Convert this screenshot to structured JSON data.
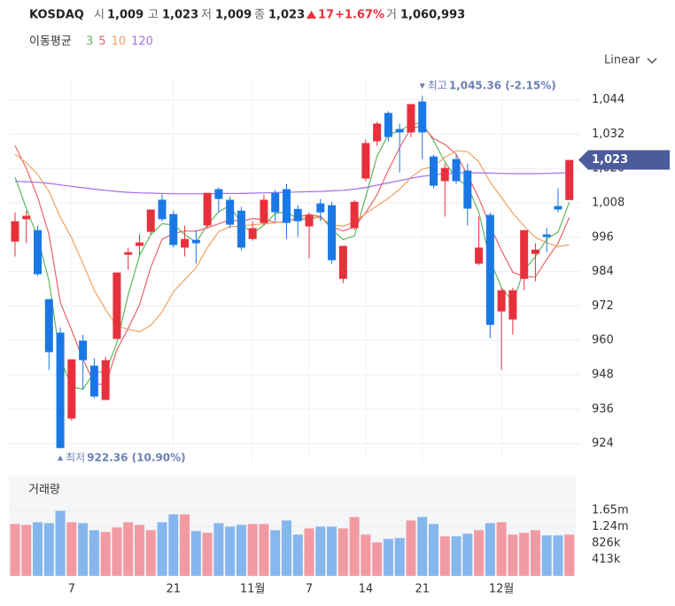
{
  "header": {
    "symbol": "KOSDAQ",
    "fields": [
      {
        "label": "시",
        "value": "1,009"
      },
      {
        "label": "고",
        "value": "1,023"
      },
      {
        "label": "저",
        "value": "1,009"
      },
      {
        "label": "종",
        "value": "1,023"
      }
    ],
    "change": "17",
    "change_pct": "+1.67%",
    "volume_label": "거",
    "volume": "1,060,993",
    "scale_mode": "Linear"
  },
  "chart_data": [
    {
      "type": "candlestick",
      "legend_title": "이동평균",
      "categories": [
        null,
        null,
        null,
        null,
        null,
        "7",
        null,
        null,
        null,
        null,
        null,
        null,
        null,
        null,
        "21",
        null,
        null,
        null,
        null,
        null,
        null,
        "11월",
        null,
        null,
        null,
        null,
        "7",
        null,
        null,
        null,
        null,
        "14",
        null,
        null,
        null,
        null,
        "21",
        null,
        null,
        null,
        null,
        null,
        null,
        "12월",
        null,
        null,
        null,
        null,
        null,
        null
      ],
      "open": [
        994.5,
        1002.3,
        998.5,
        974.4,
        962.7,
        932.7,
        959.9,
        951.2,
        939.2,
        960.5,
        989.9,
        993.0,
        997.9,
        1009.1,
        1004.1,
        992.4,
        995.1,
        1000.1,
        1012.8,
        1009.1,
        1005.3,
        995.4,
        1001.0,
        1011.5,
        1012.8,
        1005.9,
        999.8,
        1007.8,
        1007.2,
        981.5,
        999.2,
        1016.5,
        1029.5,
        1039.4,
        1033.8,
        1032.6,
        1043.4,
        1024.2,
        1015.6,
        1023.3,
        1019.3,
        986.8,
        1003.8,
        970.1,
        967.3,
        981.5,
        990.2,
        997.0,
        1006.9,
        1009
      ],
      "high": [
        1004.7,
        1005.3,
        1000.1,
        974.4,
        964.5,
        953.4,
        962.0,
        953.7,
        954.3,
        983.7,
        992.4,
        997.0,
        1005.7,
        1010.9,
        1005.3,
        1000.1,
        998.5,
        1011.5,
        1013.4,
        1010.3,
        1006.6,
        1001.6,
        1010.9,
        1012.5,
        1014.6,
        1007.2,
        1004.7,
        1009.4,
        1008.4,
        993.0,
        1009.1,
        1030.1,
        1036.3,
        1040.0,
        1035.7,
        1042.5,
        1045.36,
        1024.8,
        1021.7,
        1024.8,
        1021.7,
        1003.2,
        1004.7,
        978.4,
        978.4,
        998.5,
        993.9,
        999.2,
        1013.1,
        1023
      ],
      "low": [
        989.3,
        993.9,
        982.5,
        949.7,
        922.36,
        932.0,
        942.9,
        939.8,
        939.2,
        960.5,
        984.6,
        989.9,
        997.0,
        1001.6,
        992.4,
        989.3,
        986.8,
        999.2,
        1004.7,
        999.2,
        991.4,
        994.8,
        1000.1,
        1001.6,
        995.4,
        996.1,
        988.6,
        1001.6,
        986.8,
        980.0,
        998.5,
        1015.6,
        1027.9,
        1029.5,
        1018.6,
        1031.0,
        1023.3,
        1013.1,
        1003.2,
        1014.6,
        1000.1,
        986.2,
        960.8,
        949.7,
        962.0,
        977.5,
        980.6,
        990.8,
        1004.7,
        1009
      ],
      "close": [
        1001.6,
        1003.5,
        983.1,
        955.9,
        922.4,
        953.4,
        953.1,
        940.4,
        953.1,
        983.7,
        990.8,
        994.2,
        1005.7,
        1002.3,
        993.3,
        995.4,
        993.9,
        1011.5,
        1009.4,
        1000.4,
        992.4,
        999.2,
        1009.1,
        1004.7,
        1001.0,
        1001.6,
        1003.8,
        1004.7,
        988.0,
        993.0,
        1008.4,
        1028.9,
        1035.7,
        1031.0,
        1032.6,
        1042.5,
        1032.6,
        1014.0,
        1020.2,
        1015.6,
        1006.0,
        992.4,
        965.4,
        977.5,
        977.5,
        998.5,
        991.7,
        996.1,
        1005.7,
        1023
      ],
      "up_color": "#e8303d",
      "down_color": "#1a78e6",
      "series": [
        {
          "name": "3",
          "color": "#5cb85c",
          "values": [
            1017,
            1006,
            996.1,
            980.8,
            953.7,
            943.8,
            942.9,
            949.0,
            948.9,
            959.1,
            975.9,
            989.6,
            996.9,
            1000.7,
            1000.4,
            997.0,
            994.2,
            1000.3,
            1004.9,
            1007.1,
            1000.7,
            997.3,
            1000.2,
            1004.3,
            1004.9,
            1002.4,
            1002.1,
            1003.4,
            998.8,
            995.2,
            996.5,
            1010.1,
            1024.3,
            1031.9,
            1033.1,
            1035.4,
            1035.9,
            1029.7,
            1022.3,
            1016.6,
            1013.9,
            1004.7,
            987.9,
            978.4,
            973.5,
            984.5,
            989.2,
            995.4,
            997.8,
            1008.3
          ]
        },
        {
          "name": "5",
          "color": "#e8636b",
          "values": [
            1028,
            1020,
            1010,
            997,
            973.2,
            963.6,
            953.5,
            945.0,
            944.4,
            956.7,
            964.2,
            972.4,
            985.5,
            995.3,
            997.3,
            998.2,
            998.1,
            999.3,
            1000.7,
            1002.1,
            1001.5,
            1002.6,
            1002.1,
            1001.2,
            1001.3,
            1003.1,
            1004.0,
            1003.2,
            999.8,
            998.2,
            999.6,
            1004.6,
            1010.8,
            1019.4,
            1027.3,
            1034.1,
            1034.9,
            1030.5,
            1028.4,
            1025.0,
            1017.7,
            1009.6,
            999.9,
            991.4,
            983.8,
            982.3,
            982.1,
            988.3,
            993.9,
            1003.0
          ]
        },
        {
          "name": "10",
          "color": "#f0a060",
          "values": [
            1025,
            1022,
            1018,
            1012,
            1003,
            995.8,
            986.8,
            977.5,
            970.7,
            965.0,
            963.9,
            963.0,
            965.3,
            969.9,
            977.0,
            981.2,
            985.3,
            992.4,
            998.0,
            999.7,
            999.9,
            1000.4,
            1000.7,
            1001.0,
            1001.7,
            1002.3,
            1003.3,
            1002.7,
            1000.5,
            999.8,
            1001.4,
            1004.3,
            1007.0,
            1009.6,
            1012.8,
            1016.9,
            1019.8,
            1020.7,
            1023.9,
            1026.2,
            1025.9,
            1022.3,
            1015.2,
            1009.9,
            1004.4,
            1000.0,
            995.9,
            994.1,
            992.7,
            993.4
          ]
        },
        {
          "name": "120",
          "color": "#a070e8",
          "values": [
            1015.5,
            1015.4,
            1015.2,
            1014.8,
            1014.3,
            1013.8,
            1013.3,
            1012.8,
            1012.4,
            1012.0,
            1011.7,
            1011.5,
            1011.4,
            1011.3,
            1011.2,
            1011.2,
            1011.2,
            1011.2,
            1011.3,
            1011.3,
            1011.3,
            1011.4,
            1011.5,
            1011.6,
            1011.7,
            1011.8,
            1011.9,
            1012.0,
            1012.2,
            1012.4,
            1012.8,
            1013.4,
            1014.2,
            1015.0,
            1015.8,
            1016.6,
            1017.3,
            1017.8,
            1018.2,
            1018.4,
            1018.5,
            1018.5,
            1018.4,
            1018.3,
            1018.2,
            1018.2,
            1018.2,
            1018.3,
            1018.4,
            1018.6
          ]
        }
      ],
      "annotations": [
        {
          "text": "최고",
          "value": 1045.36,
          "label": "1,045.36 (-2.15%)"
        },
        {
          "text": "최저",
          "value": 922.36,
          "label": "922.36 (10.90%)"
        }
      ],
      "last_price": {
        "value": 1023,
        "label": "1,023"
      },
      "ylim": [
        918,
        1051
      ],
      "yticks": [
        924,
        936,
        948,
        960,
        972,
        984,
        996,
        {
          "value": 1008,
          "label": "1,008"
        },
        {
          "value": 1020,
          "label": "1,020"
        },
        {
          "value": 1032,
          "label": "1,032"
        },
        {
          "value": 1044,
          "label": "1,044"
        }
      ],
      "grid": true
    },
    {
      "type": "bar",
      "title": "거래량",
      "values": [
        1310000,
        1288000,
        1354000,
        1332000,
        1643000,
        1354000,
        1332000,
        1154000,
        1110000,
        1221000,
        1354000,
        1288000,
        1154000,
        1354000,
        1554000,
        1554000,
        1132000,
        1088000,
        1332000,
        1243000,
        1288000,
        1310000,
        1310000,
        1154000,
        1399000,
        1043000,
        1199000,
        1243000,
        1243000,
        1199000,
        1487000,
        1043000,
        844000,
        932000,
        955000,
        1399000,
        1487000,
        1310000,
        999000,
        999000,
        1066000,
        1154000,
        1332000,
        1354000,
        1043000,
        1088000,
        1154000,
        1021000,
        1021000,
        1043000
      ],
      "up_color": "#f29aa2",
      "down_color": "#86b6ee",
      "ylim": [
        0,
        2460000
      ],
      "yticks": [
        {
          "value": 413000,
          "label": "413k"
        },
        {
          "value": 826000,
          "label": "826k"
        },
        {
          "value": 1240000,
          "label": "1.24m"
        },
        {
          "value": 1650000,
          "label": "1.65m"
        }
      ],
      "grid": true
    }
  ]
}
